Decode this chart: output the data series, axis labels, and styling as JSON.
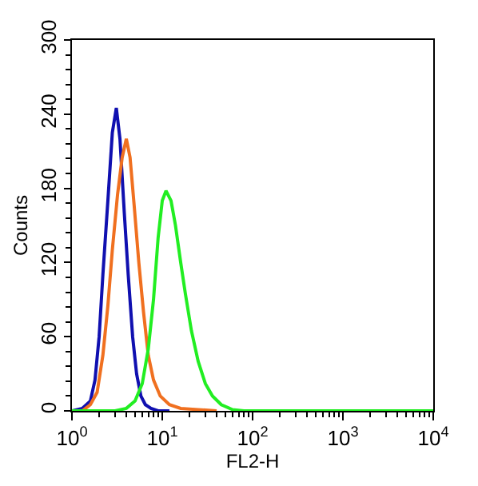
{
  "chart_data": {
    "type": "line",
    "xlabel": "FL2-H",
    "ylabel": "Counts",
    "log": "x",
    "marker": "none",
    "line_style": "solid",
    "xlim": [
      1,
      10000
    ],
    "xticks": [
      {
        "value": 1,
        "label": "10$^{0}$"
      },
      {
        "value": 10,
        "label": "10$^{1}$"
      },
      {
        "value": 100,
        "label": "10$^{2}$"
      },
      {
        "value": 1000,
        "label": "10$^{3}$"
      },
      {
        "value": 10000,
        "label": "10$^{4}$"
      }
    ],
    "ylim": [
      0,
      300
    ],
    "yticks": [
      0,
      60,
      120,
      180,
      240,
      300
    ],
    "series": [
      {
        "color": "#1010b0",
        "x": [
          1,
          1.3,
          1.6,
          1.8,
          2.0,
          2.2,
          2.5,
          2.8,
          3.1,
          3.4,
          3.8,
          4.2,
          4.7,
          5.2,
          5.8,
          6.5,
          7.5,
          9,
          12
        ],
        "values": [
          0,
          2,
          8,
          25,
          60,
          110,
          170,
          225,
          245,
          220,
          160,
          110,
          60,
          30,
          12,
          5,
          2,
          0,
          0
        ]
      },
      {
        "color": "#f07020",
        "x": [
          1,
          1.3,
          1.6,
          1.9,
          2.2,
          2.5,
          2.8,
          3.2,
          3.6,
          4.0,
          4.4,
          4.9,
          5.5,
          6.2,
          7,
          8,
          9.5,
          12,
          16,
          25,
          40
        ],
        "values": [
          0,
          0,
          5,
          15,
          45,
          85,
          130,
          175,
          205,
          220,
          205,
          165,
          120,
          80,
          45,
          25,
          12,
          5,
          2,
          1,
          0
        ]
      },
      {
        "color": "#22ee22",
        "x": [
          1,
          3,
          4,
          5,
          6,
          7,
          8,
          9,
          10,
          11,
          12.5,
          14,
          16,
          18,
          21,
          25,
          30,
          36,
          45,
          60,
          80,
          10000
        ],
        "values": [
          0,
          0,
          2,
          8,
          22,
          50,
          90,
          140,
          170,
          178,
          170,
          150,
          120,
          95,
          65,
          40,
          22,
          12,
          5,
          1,
          0,
          0
        ]
      }
    ]
  }
}
